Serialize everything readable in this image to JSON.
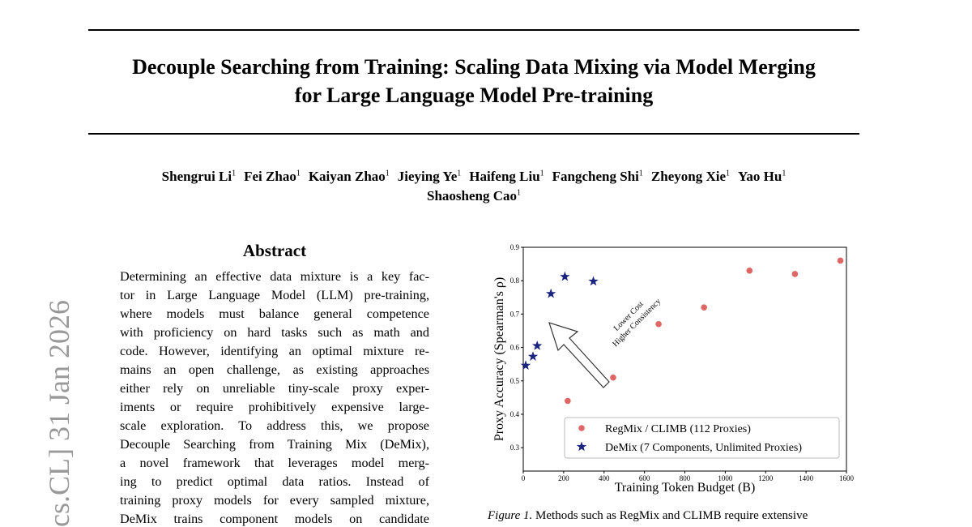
{
  "arxiv_stamp": "cs.CL]   31 Jan 2026",
  "title_lines": [
    "Decouple Searching from Training: Scaling Data Mixing via Model Merging",
    "for Large Language Model Pre-training"
  ],
  "authors": [
    {
      "name": "Shengrui Li",
      "affil": "1"
    },
    {
      "name": "Fei Zhao",
      "affil": "1"
    },
    {
      "name": "Kaiyan Zhao",
      "affil": "1"
    },
    {
      "name": "Jieying Ye",
      "affil": "1"
    },
    {
      "name": "Haifeng Liu",
      "affil": "1"
    },
    {
      "name": "Fangcheng Shi",
      "affil": "1"
    },
    {
      "name": "Zheyong Xie",
      "affil": "1"
    },
    {
      "name": "Yao Hu",
      "affil": "1"
    },
    {
      "name": "Shaosheng Cao",
      "affil": "1"
    }
  ],
  "abstract": {
    "heading": "Abstract",
    "lines": [
      "Determining an effective data mixture is a key fac-",
      "tor in Large Language Model (LLM) pre-training,",
      "where models must balance general competence",
      "with proficiency on hard tasks such as math and",
      "code. However, identifying an optimal mixture re-",
      "mains an open challenge, as existing approaches",
      "either rely on unreliable tiny-scale proxy exper-",
      "iments or require prohibitively expensive large-",
      "scale exploration.  To address this, we propose",
      "Decouple Searching from Training Mix (DeMix),",
      "a novel framework that leverages model merg-",
      "ing to predict optimal data ratios.  Instead of",
      "training proxy models for every sampled mixture,",
      "DeMix trains component models on candidate"
    ]
  },
  "figure": {
    "chart_data": {
      "type": "scatter",
      "xlabel": "Training Token Budget (B)",
      "ylabel": "Proxy Accuracy (Spearman's ρ)",
      "xlim": [
        0,
        1600
      ],
      "xticks": [
        0,
        200,
        400,
        600,
        800,
        1000,
        1200,
        1400,
        1600
      ],
      "ylim": [
        0.23,
        0.9
      ],
      "yticks": [
        0.3,
        0.4,
        0.5,
        0.6,
        0.7,
        0.8,
        0.9
      ],
      "annotation": [
        "Lower Cost",
        "Higher Consistency"
      ],
      "legend": "lower right",
      "series": [
        {
          "name": "RegMix / CLIMB (112 Proxies)",
          "color": "#e06666",
          "marker": "circle",
          "x": [
            220,
            445,
            670,
            895,
            1120,
            1345,
            1570
          ],
          "values": [
            0.44,
            0.51,
            0.67,
            0.72,
            0.83,
            0.82,
            0.86
          ]
        },
        {
          "name": "DeMix (7 Components, Unlimited Proxies)",
          "color": "#1a237e",
          "marker": "star",
          "x": [
            12,
            48,
            69,
            137,
            206,
            347
          ],
          "values": [
            0.546,
            0.573,
            0.605,
            0.761,
            0.812,
            0.798
          ]
        }
      ]
    },
    "caption": {
      "label": "Figure 1.",
      "text": "Methods such as RegMix and CLIMB require extensive"
    }
  }
}
